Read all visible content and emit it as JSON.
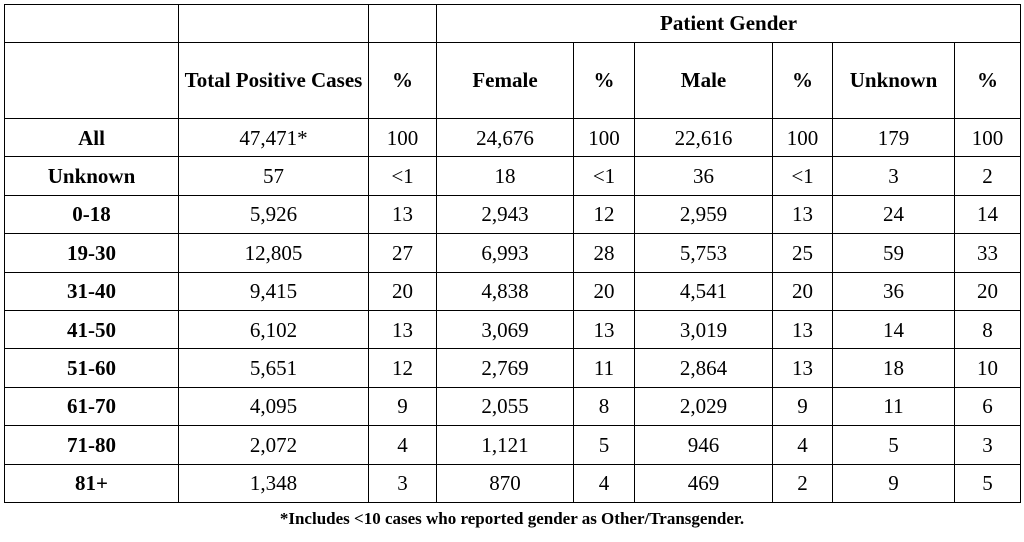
{
  "table": {
    "super_header": "Patient Gender",
    "columns": [
      "Total Positive Cases",
      "%",
      "Female",
      "%",
      "Male",
      "%",
      "Unknown",
      "%"
    ],
    "rows": [
      {
        "label": "All",
        "cells": [
          "47,471*",
          "100",
          "24,676",
          "100",
          "22,616",
          "100",
          "179",
          "100"
        ]
      },
      {
        "label": "Unknown",
        "cells": [
          "57",
          "<1",
          "18",
          "<1",
          "36",
          "<1",
          "3",
          "2"
        ]
      },
      {
        "label": "0-18",
        "cells": [
          "5,926",
          "13",
          "2,943",
          "12",
          "2,959",
          "13",
          "24",
          "14"
        ]
      },
      {
        "label": "19-30",
        "cells": [
          "12,805",
          "27",
          "6,993",
          "28",
          "5,753",
          "25",
          "59",
          "33"
        ]
      },
      {
        "label": "31-40",
        "cells": [
          "9,415",
          "20",
          "4,838",
          "20",
          "4,541",
          "20",
          "36",
          "20"
        ]
      },
      {
        "label": "41-50",
        "cells": [
          "6,102",
          "13",
          "3,069",
          "13",
          "3,019",
          "13",
          "14",
          "8"
        ]
      },
      {
        "label": "51-60",
        "cells": [
          "5,651",
          "12",
          "2,769",
          "11",
          "2,864",
          "13",
          "18",
          "10"
        ]
      },
      {
        "label": "61-70",
        "cells": [
          "4,095",
          "9",
          "2,055",
          "8",
          "2,029",
          "9",
          "11",
          "6"
        ]
      },
      {
        "label": "71-80",
        "cells": [
          "2,072",
          "4",
          "1,121",
          "5",
          "946",
          "4",
          "5",
          "3"
        ]
      },
      {
        "label": "81+",
        "cells": [
          "1,348",
          "3",
          "870",
          "4",
          "469",
          "2",
          "9",
          "5"
        ]
      }
    ]
  },
  "footnote": "*Includes <10 cases who reported gender as Other/Transgender."
}
